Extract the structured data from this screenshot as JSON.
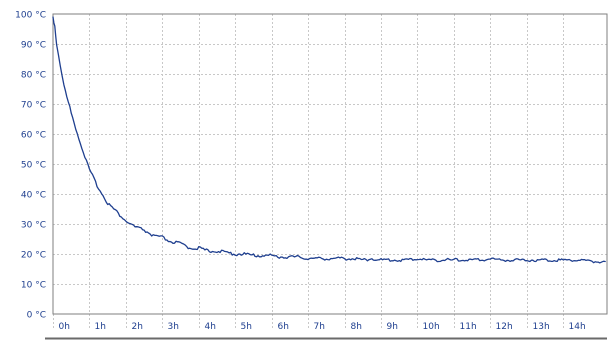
{
  "chart_data": {
    "type": "line",
    "title": "",
    "xlabel": "",
    "ylabel": "",
    "xlim": [
      0,
      15.2
    ],
    "ylim": [
      0,
      100
    ],
    "grid": true,
    "legend": "none",
    "colors": {
      "series": "#1f3f8f",
      "grid": "#c8c8c8",
      "axis": "#7f7f7f",
      "tick_label": "#1f3f8f"
    },
    "y_ticks": [
      {
        "value": 0,
        "label": "0 °C"
      },
      {
        "value": 10,
        "label": "10 °C"
      },
      {
        "value": 20,
        "label": "20 °C"
      },
      {
        "value": 30,
        "label": "30 °C"
      },
      {
        "value": 40,
        "label": "40 °C"
      },
      {
        "value": 50,
        "label": "50 °C"
      },
      {
        "value": 60,
        "label": "60 °C"
      },
      {
        "value": 70,
        "label": "70 °C"
      },
      {
        "value": 80,
        "label": "80 °C"
      },
      {
        "value": 90,
        "label": "90 °C"
      },
      {
        "value": 100,
        "label": "100 °C"
      }
    ],
    "x_ticks": [
      {
        "value": 0,
        "label": "0h"
      },
      {
        "value": 1,
        "label": "1h"
      },
      {
        "value": 2,
        "label": "2h"
      },
      {
        "value": 3,
        "label": "3h"
      },
      {
        "value": 4,
        "label": "4h"
      },
      {
        "value": 5,
        "label": "5h"
      },
      {
        "value": 6,
        "label": "6h"
      },
      {
        "value": 7,
        "label": "7h"
      },
      {
        "value": 8,
        "label": "8h"
      },
      {
        "value": 9,
        "label": "9h"
      },
      {
        "value": 10,
        "label": "10h"
      },
      {
        "value": 11,
        "label": "11h"
      },
      {
        "value": 12,
        "label": "12h"
      },
      {
        "value": 13,
        "label": "13h"
      },
      {
        "value": 14,
        "label": "14h"
      }
    ],
    "series": [
      {
        "x": [
          0,
          0.05,
          0.1,
          0.2,
          0.3,
          0.5,
          0.75,
          1.0,
          1.25,
          1.5,
          1.75,
          2.0,
          2.25,
          2.5,
          2.75,
          3.0,
          3.25,
          3.5,
          3.75,
          4.0,
          4.25,
          4.5,
          4.75,
          5.0,
          5.25,
          5.5,
          5.75,
          6.0,
          6.25,
          6.5,
          6.75,
          7.0,
          7.25,
          7.5,
          7.75,
          8.0,
          8.25,
          8.5,
          8.75,
          9.0,
          9.25,
          9.5,
          9.75,
          10.0,
          10.25,
          10.5,
          10.75,
          11.0,
          11.25,
          11.5,
          11.75,
          12.0,
          12.25,
          12.5,
          12.75,
          13.0,
          13.25,
          13.5,
          13.75,
          14.0,
          14.25,
          14.5,
          14.75,
          15.0,
          15.15
        ],
        "values": [
          99,
          96,
          90,
          83,
          76,
          67,
          57,
          48,
          42,
          37,
          34,
          31,
          29,
          28,
          26,
          25.5,
          24,
          23.5,
          22,
          22,
          21,
          21,
          20.5,
          20,
          20,
          19.5,
          19.5,
          19.5,
          19,
          19,
          19,
          18.5,
          18.5,
          18.5,
          18.5,
          18.5,
          18.5,
          18,
          18.5,
          18,
          18,
          18,
          18,
          18.5,
          18,
          18,
          18,
          18,
          18,
          18,
          18,
          18.5,
          18,
          18,
          18,
          18,
          18,
          18,
          18,
          18,
          18,
          18,
          17.5,
          17.5,
          17.5
        ]
      }
    ]
  }
}
